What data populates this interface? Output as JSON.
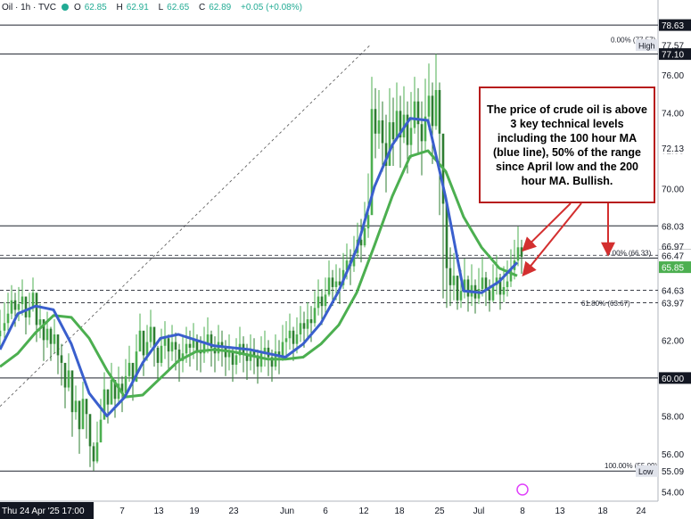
{
  "header": {
    "symbol": "Oil · 1h · TVC",
    "open_label": "O",
    "open": "62.85",
    "high_label": "H",
    "high": "62.91",
    "low_label": "L",
    "low": "62.65",
    "close_label": "C",
    "close": "62.89",
    "change": "+0.05 (+0.08%)"
  },
  "annotation": "The price of crude oil is above 3 key technical levels including the 100 hour MA (blue line), 50% of the range since April low and the 200 hour MA. Bullish.",
  "colors": {
    "ma100": "#3a5fcd",
    "ma200": "#4caf50",
    "candle": "#4caf50",
    "annotation_border": "#b71c1c",
    "price_tag": "#131722",
    "green_tag": "#4caf50"
  },
  "chart_data": {
    "type": "line",
    "title": "",
    "xlabel": "",
    "ylabel": "",
    "ylim": [
      53.5,
      79.2
    ],
    "x_ticks": [
      "Thu 24 Apr '25  17:00",
      "7",
      "13",
      "19",
      "23",
      "Jun",
      "6",
      "12",
      "18",
      "25",
      "Jul",
      "8",
      "13",
      "18",
      "24"
    ],
    "y_ticks": [
      54.0,
      56.0,
      58.0,
      60.0,
      62.0,
      64.0,
      66.0,
      68.0,
      70.0,
      72.0,
      74.0,
      76.0
    ],
    "price_labels": [
      {
        "value": 78.63,
        "text": "78.63",
        "style": "dark"
      },
      {
        "value": 77.57,
        "text": "77.57",
        "style": "plain"
      },
      {
        "value": 77.1,
        "text": "77.10",
        "style": "dark"
      },
      {
        "value": 72.13,
        "text": "72.13",
        "style": "plain"
      },
      {
        "value": 68.03,
        "text": "68.03",
        "style": "plain"
      },
      {
        "value": 66.97,
        "text": "66.97",
        "style": "plain"
      },
      {
        "value": 66.48,
        "text": "66.48",
        "style": "dark"
      },
      {
        "value": 66.47,
        "text": "66.47",
        "style": "plain"
      },
      {
        "value": 65.85,
        "text": "65.85",
        "style": "green"
      },
      {
        "value": 64.63,
        "text": "64.63",
        "style": "plain"
      },
      {
        "value": 63.97,
        "text": "63.97",
        "style": "plain"
      },
      {
        "value": 60.0,
        "text": "60.00",
        "style": "dark"
      },
      {
        "value": 55.09,
        "text": "55.09",
        "style": "plain"
      }
    ],
    "tag_high": {
      "value": 77.57,
      "text": "High"
    },
    "tag_low": {
      "value": 55.09,
      "text": "Low"
    },
    "fib_labels": [
      {
        "value": 77.57,
        "text": "0.00% (77.57)"
      },
      {
        "value": 66.33,
        "text": "0.00% (66.33)"
      },
      {
        "value": 63.67,
        "text": "61.80% (63.67)"
      },
      {
        "value": 55.09,
        "text": "100.00% (55.09)"
      }
    ],
    "levels": [
      {
        "value": 78.63,
        "style": "solid"
      },
      {
        "value": 77.1,
        "style": "solid"
      },
      {
        "value": 68.03,
        "style": "solid"
      },
      {
        "value": 66.48,
        "style": "dashed"
      },
      {
        "value": 66.33,
        "style": "solid"
      },
      {
        "value": 64.63,
        "style": "dashed"
      },
      {
        "value": 63.97,
        "style": "dashed"
      },
      {
        "value": 60.0,
        "style": "solid"
      },
      {
        "value": 55.09,
        "style": "solid"
      }
    ],
    "series": [
      {
        "name": "Price",
        "x": [
          0,
          5,
          9,
          13,
          17,
          21,
          25,
          29,
          33,
          37,
          41,
          45,
          49,
          53,
          57,
          61,
          65,
          69,
          73,
          77,
          81,
          85,
          89,
          93,
          97,
          101,
          105,
          109,
          113,
          117,
          121,
          125,
          129,
          133,
          137,
          141,
          145,
          149,
          153,
          157,
          161,
          165,
          169,
          173,
          177,
          181,
          185,
          189,
          193,
          197,
          201,
          205,
          209,
          213,
          217,
          221,
          225,
          229,
          233,
          237,
          241,
          245,
          249,
          253,
          257,
          261,
          265,
          269,
          273,
          277,
          281,
          285,
          289,
          293,
          297,
          301,
          305,
          309,
          313,
          317,
          321,
          325,
          329,
          333,
          337,
          341,
          345,
          349,
          353,
          357,
          361,
          365,
          369,
          373,
          377,
          381,
          385,
          389,
          393,
          397,
          401,
          405,
          409,
          413,
          417,
          421,
          425,
          429,
          433,
          437,
          441,
          445,
          449,
          453,
          457,
          461,
          465,
          469,
          473,
          477,
          481,
          485,
          489,
          493,
          497,
          501,
          505,
          509,
          513,
          517,
          521,
          525,
          529,
          533,
          537,
          541,
          545,
          549,
          553,
          557,
          561,
          565,
          569,
          573,
          577,
          581,
          585
        ],
        "values": [
          62.5,
          62.9,
          63.4,
          64.1,
          63.6,
          63.9,
          64.3,
          63.2,
          63.7,
          64.5,
          62.8,
          63.1,
          62.0,
          62.6,
          61.8,
          62.3,
          61.2,
          60.8,
          59.5,
          60.4,
          58.2,
          58.8,
          57.3,
          58.9,
          58.1,
          56.4,
          55.6,
          56.6,
          57.8,
          59.4,
          58.6,
          59.9,
          58.9,
          59.7,
          59.2,
          60.1,
          60.8,
          59.8,
          61.4,
          62.5,
          61.2,
          61.9,
          62.7,
          61.6,
          60.8,
          61.7,
          62.1,
          61.4,
          61.9,
          61.5,
          60.9,
          61.3,
          61.8,
          61.6,
          62.0,
          61.4,
          61.3,
          61.8,
          62.3,
          61.6,
          61.3,
          61.9,
          61.6,
          61.1,
          61.4,
          60.7,
          61.2,
          61.8,
          61.3,
          60.9,
          61.4,
          61.2,
          60.6,
          61.3,
          61.6,
          61.1,
          60.6,
          61.4,
          61.1,
          61.9,
          62.1,
          62.5,
          61.8,
          62.3,
          62.9,
          62.6,
          63.1,
          62.9,
          63.7,
          64.3,
          63.8,
          64.4,
          65.3,
          64.8,
          65.1,
          64.9,
          65.7,
          66.2,
          65.9,
          66.6,
          67.3,
          67.0,
          67.9,
          68.6,
          74.2,
          72.9,
          73.6,
          72.4,
          71.2,
          73.5,
          72.6,
          74.1,
          72.7,
          73.9,
          72.3,
          73.2,
          74.6,
          73.4,
          72.5,
          73.8,
          74.9,
          73.3,
          75.2,
          72.9,
          69.2,
          65.8,
          64.9,
          65.4,
          64.1,
          64.6,
          65.2,
          64.3,
          64.9,
          64.2,
          64.7,
          65.3,
          64.6,
          64.1,
          64.9,
          65.3,
          64.4,
          64.8,
          65.1,
          65.7,
          66.2,
          66.9,
          66.4
        ],
        "high": [
          63.6,
          64.0,
          64.5,
          64.9,
          64.5,
          64.8,
          65.2,
          64.1,
          64.5,
          65.3,
          63.7,
          63.9,
          62.9,
          63.5,
          62.7,
          63.1,
          62.1,
          61.8,
          60.4,
          61.3,
          59.3,
          59.6,
          58.2,
          59.8,
          58.9,
          57.5,
          56.6,
          57.7,
          58.9,
          60.3,
          59.4,
          60.8,
          59.8,
          60.6,
          60.1,
          61.0,
          61.7,
          60.7,
          62.3,
          63.4,
          62.1,
          62.8,
          63.6,
          62.5,
          61.7,
          62.6,
          63.0,
          62.3,
          62.8,
          62.4,
          61.8,
          62.2,
          62.7,
          62.5,
          62.9,
          62.3,
          62.2,
          62.7,
          63.2,
          62.5,
          62.2,
          62.8,
          62.5,
          62.0,
          62.3,
          61.6,
          62.1,
          62.7,
          62.2,
          61.8,
          62.3,
          62.1,
          61.5,
          62.2,
          62.5,
          62.0,
          61.5,
          62.3,
          62.0,
          62.8,
          63.0,
          63.4,
          62.7,
          63.2,
          63.8,
          63.5,
          64.0,
          63.8,
          64.6,
          65.2,
          64.7,
          65.3,
          66.2,
          65.7,
          66.0,
          65.8,
          66.6,
          67.1,
          66.8,
          67.5,
          68.2,
          68.4,
          69.3,
          70.8,
          75.9,
          75.3,
          75.2,
          74.6,
          73.9,
          75.3,
          74.8,
          75.6,
          74.9,
          75.4,
          74.6,
          75.1,
          75.9,
          75.3,
          74.6,
          75.8,
          76.6,
          75.6,
          77.1,
          75.6,
          72.4,
          68.9,
          66.9,
          66.6,
          65.4,
          65.7,
          66.3,
          65.4,
          66.0,
          65.2,
          65.8,
          66.4,
          65.6,
          65.2,
          66.0,
          66.5,
          65.5,
          65.9,
          66.2,
          66.8,
          67.3,
          68.0,
          67.3
        ],
        "low": [
          61.6,
          62.0,
          62.5,
          63.1,
          62.7,
          63.0,
          63.3,
          62.3,
          62.8,
          63.5,
          61.9,
          62.1,
          60.9,
          61.6,
          60.9,
          61.3,
          60.2,
          59.6,
          58.4,
          59.3,
          56.9,
          57.8,
          56.0,
          57.6,
          56.8,
          55.3,
          55.1,
          55.5,
          56.7,
          58.4,
          57.6,
          58.9,
          57.9,
          58.7,
          58.2,
          59.0,
          59.8,
          58.8,
          60.3,
          61.4,
          60.1,
          60.9,
          61.6,
          60.6,
          59.9,
          60.6,
          61.0,
          60.4,
          60.9,
          60.4,
          59.8,
          60.3,
          60.8,
          60.6,
          61.0,
          60.4,
          60.3,
          60.8,
          61.3,
          60.6,
          60.3,
          60.9,
          60.6,
          60.1,
          60.4,
          59.8,
          60.2,
          60.8,
          60.3,
          59.9,
          60.4,
          60.2,
          59.7,
          60.3,
          60.6,
          60.1,
          59.8,
          60.4,
          60.2,
          60.9,
          61.1,
          61.5,
          60.9,
          61.3,
          61.9,
          61.6,
          62.1,
          61.9,
          62.7,
          63.3,
          62.8,
          63.4,
          64.3,
          63.8,
          64.1,
          63.9,
          64.7,
          65.2,
          64.9,
          65.6,
          66.3,
          66.1,
          66.9,
          67.4,
          70.2,
          71.6,
          72.1,
          70.9,
          69.8,
          71.6,
          71.2,
          72.5,
          71.1,
          72.4,
          70.8,
          71.6,
          72.9,
          71.8,
          70.7,
          72.0,
          73.1,
          71.3,
          73.1,
          68.6,
          64.2,
          63.7,
          63.8,
          64.1,
          63.6,
          63.7,
          64.2,
          63.5,
          63.8,
          63.4,
          63.9,
          64.3,
          63.8,
          63.5,
          64.0,
          64.4,
          63.6,
          64.0,
          64.3,
          64.8,
          65.2,
          65.9,
          65.5
        ]
      },
      {
        "name": "100 hour MA",
        "x": [
          0,
          20,
          40,
          60,
          80,
          100,
          120,
          140,
          160,
          180,
          200,
          220,
          240,
          260,
          280,
          300,
          320,
          340,
          360,
          380,
          400,
          420,
          440,
          460,
          480,
          500,
          520,
          540,
          560,
          580
        ],
        "values": [
          61.5,
          63.4,
          63.8,
          63.6,
          61.8,
          59.2,
          58.0,
          59.0,
          60.8,
          62.1,
          62.3,
          62.0,
          61.7,
          61.6,
          61.5,
          61.3,
          61.1,
          61.8,
          62.9,
          64.6,
          66.8,
          70.1,
          72.3,
          73.7,
          73.6,
          69.5,
          64.6,
          64.5,
          65.1,
          66.1
        ]
      },
      {
        "name": "200 hour MA",
        "x": [
          0,
          20,
          40,
          60,
          80,
          100,
          120,
          140,
          160,
          180,
          200,
          220,
          240,
          260,
          280,
          300,
          320,
          340,
          360,
          380,
          400,
          420,
          440,
          460,
          480,
          500,
          520,
          540,
          560,
          580
        ],
        "values": [
          60.6,
          61.3,
          62.4,
          63.3,
          63.2,
          62.1,
          60.4,
          59.0,
          59.1,
          60.0,
          60.9,
          61.4,
          61.5,
          61.4,
          61.2,
          61.0,
          61.0,
          61.1,
          61.8,
          62.8,
          64.5,
          67.0,
          69.6,
          71.7,
          72.0,
          70.9,
          68.5,
          66.9,
          65.8,
          65.4
        ]
      }
    ]
  }
}
